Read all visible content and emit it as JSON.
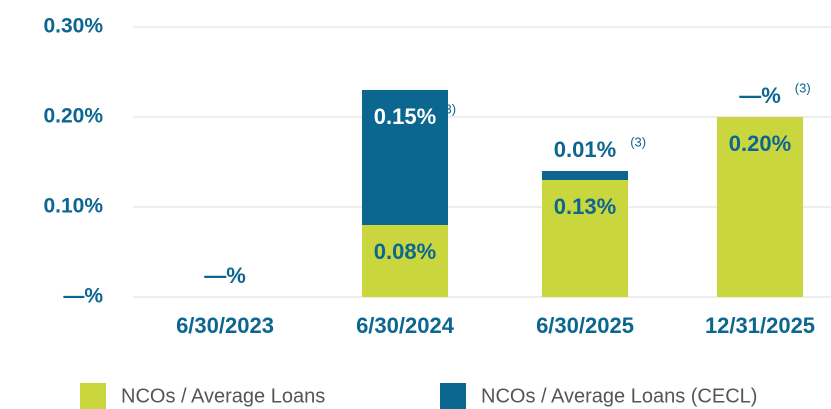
{
  "chart_data": {
    "type": "stacked_bar",
    "categories": [
      "6/30/2023",
      "6/30/2024",
      "6/30/2025",
      "12/31/2025"
    ],
    "series": [
      {
        "name": "NCOs / Average Loans",
        "color": "#c9d63e",
        "values": [
          0,
          0.08,
          0.13,
          0.2
        ],
        "value_labels": [
          "—%",
          "0.08%",
          "0.13%",
          "0.20%"
        ]
      },
      {
        "name": "NCOs / Average Loans (CECL)",
        "color": "#0b6690",
        "values": [
          0,
          0.15,
          0.01,
          0
        ],
        "value_labels": [
          null,
          "0.15%",
          "0.01%",
          "—%"
        ],
        "footnotes": [
          null,
          "(3)",
          "(3)",
          "(3)"
        ]
      }
    ],
    "ylim": [
      0,
      0.3
    ],
    "yticks": [
      {
        "value": 0,
        "label": "—%"
      },
      {
        "value": 0.1,
        "label": "0.10%"
      },
      {
        "value": 0.2,
        "label": "0.20%"
      },
      {
        "value": 0.3,
        "label": "0.30%"
      }
    ],
    "grid": true,
    "legend": "bottom"
  }
}
